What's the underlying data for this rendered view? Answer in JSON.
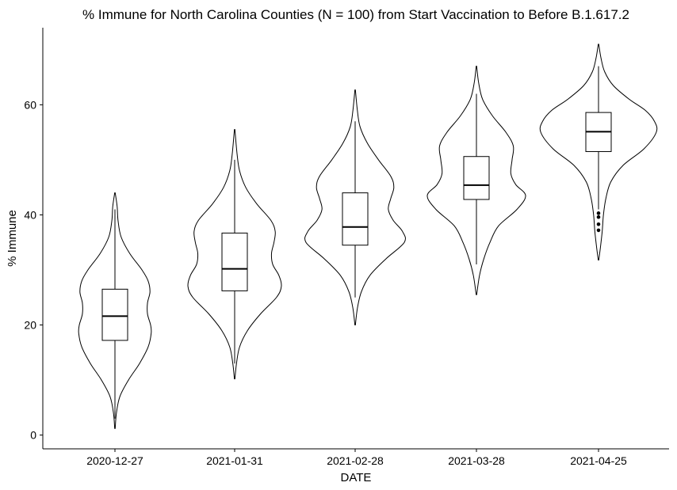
{
  "chart_data": {
    "type": "violin",
    "title": "% Immune for North Carolina Counties (N = 100) from Start Vaccination to Before B.1.617.2",
    "xlabel": "DATE",
    "ylabel": "% Immune",
    "ylim": [
      -2.5,
      74
    ],
    "yticks": [
      0,
      20,
      40,
      60
    ],
    "categories": [
      "2020-12-27",
      "2021-01-31",
      "2021-02-28",
      "2021-03-28",
      "2021-04-25"
    ],
    "series": [
      {
        "category": "2020-12-27",
        "min": 1.2,
        "max": 44.0,
        "box": {
          "q1": 17.2,
          "median": 21.6,
          "q3": 26.5
        },
        "whisker": [
          3.0,
          41.0
        ],
        "outliers": [],
        "density": [
          [
            1.2,
            0.2
          ],
          [
            4,
            1.2
          ],
          [
            7,
            4
          ],
          [
            10,
            11
          ],
          [
            13,
            20
          ],
          [
            16,
            27
          ],
          [
            18.5,
            29.5
          ],
          [
            20,
            29
          ],
          [
            22,
            26.5
          ],
          [
            24,
            26.5
          ],
          [
            26,
            28.5
          ],
          [
            28,
            27
          ],
          [
            30,
            22
          ],
          [
            33,
            12
          ],
          [
            36,
            5
          ],
          [
            39,
            2.5
          ],
          [
            41.5,
            1.8
          ],
          [
            44,
            0.2
          ]
        ]
      },
      {
        "category": "2021-01-31",
        "min": 10.2,
        "max": 55.5,
        "box": {
          "q1": 26.2,
          "median": 30.2,
          "q3": 36.7
        },
        "whisker": [
          13.0,
          50.0
        ],
        "outliers": [],
        "density": [
          [
            10.2,
            0.2
          ],
          [
            13,
            1.5
          ],
          [
            16,
            4
          ],
          [
            19,
            10.5
          ],
          [
            22,
            21
          ],
          [
            25,
            34
          ],
          [
            27,
            38
          ],
          [
            29,
            36
          ],
          [
            31,
            31
          ],
          [
            33,
            30
          ],
          [
            35,
            32
          ],
          [
            37,
            33
          ],
          [
            39,
            29.5
          ],
          [
            42,
            18
          ],
          [
            45,
            9
          ],
          [
            48,
            4
          ],
          [
            51,
            2
          ],
          [
            55.5,
            0.2
          ]
        ]
      },
      {
        "category": "2021-02-28",
        "min": 20.0,
        "max": 62.7,
        "box": {
          "q1": 34.5,
          "median": 37.8,
          "q3": 44.0
        },
        "whisker": [
          25.0,
          57.0
        ],
        "outliers": [],
        "density": [
          [
            20,
            0.2
          ],
          [
            23,
            1.8
          ],
          [
            26,
            5
          ],
          [
            29,
            12
          ],
          [
            32,
            25
          ],
          [
            35,
            40
          ],
          [
            37,
            38.5
          ],
          [
            39,
            31
          ],
          [
            41,
            27
          ],
          [
            43,
            29
          ],
          [
            45,
            31.5
          ],
          [
            47,
            29
          ],
          [
            50,
            19
          ],
          [
            53,
            10
          ],
          [
            56,
            4
          ],
          [
            59,
            1.8
          ],
          [
            62.7,
            0.2
          ]
        ]
      },
      {
        "category": "2021-03-28",
        "min": 25.5,
        "max": 67.0,
        "box": {
          "q1": 42.8,
          "median": 45.4,
          "q3": 50.6
        },
        "whisker": [
          31.0,
          62.0
        ],
        "outliers": [],
        "density": [
          [
            25.5,
            0.2
          ],
          [
            29,
            2.5
          ],
          [
            32,
            6
          ],
          [
            35,
            11
          ],
          [
            38,
            18
          ],
          [
            41,
            33
          ],
          [
            43.5,
            40
          ],
          [
            45.5,
            32
          ],
          [
            47.5,
            28
          ],
          [
            50,
            29
          ],
          [
            52.5,
            30
          ],
          [
            55,
            24
          ],
          [
            58,
            13
          ],
          [
            61,
            5
          ],
          [
            64,
            1.8
          ],
          [
            67,
            0.2
          ]
        ]
      },
      {
        "category": "2021-04-25",
        "min": 31.8,
        "max": 71.0,
        "box": {
          "q1": 51.5,
          "median": 55.1,
          "q3": 58.6
        },
        "whisker": [
          41.0,
          67.0
        ],
        "outliers": [
          37.2,
          38.3,
          39.6,
          40.3
        ],
        "density": [
          [
            31.8,
            0.2
          ],
          [
            34,
            1.5
          ],
          [
            37,
            3
          ],
          [
            40,
            4
          ],
          [
            43,
            6
          ],
          [
            46,
            10
          ],
          [
            49,
            20
          ],
          [
            52,
            37
          ],
          [
            55,
            47
          ],
          [
            57,
            45.5
          ],
          [
            59,
            38
          ],
          [
            61,
            25
          ],
          [
            63.5,
            12
          ],
          [
            66,
            5
          ],
          [
            68.5,
            2
          ],
          [
            71,
            0.2
          ]
        ]
      }
    ]
  }
}
